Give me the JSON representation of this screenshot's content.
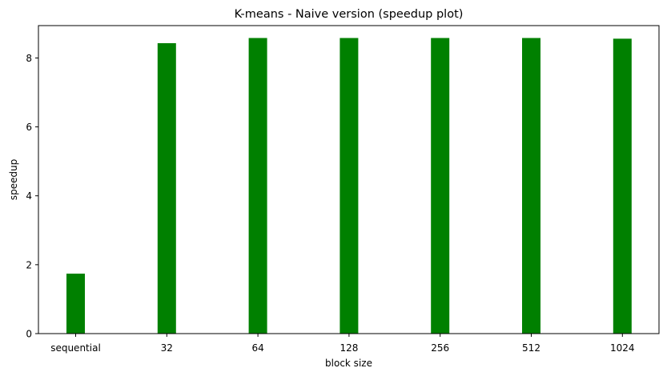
{
  "chart_data": {
    "type": "bar",
    "title": "K-means - Naive version (speedup plot)",
    "xlabel": "block size",
    "ylabel": "speedup",
    "categories": [
      "sequential",
      "32",
      "64",
      "128",
      "256",
      "512",
      "1024"
    ],
    "values": [
      1.74,
      8.43,
      8.58,
      8.58,
      8.58,
      8.58,
      8.56
    ],
    "ylim": [
      0,
      8.94
    ],
    "yticks": [
      0,
      2,
      4,
      6,
      8
    ],
    "ytick_labels": [
      "0",
      "2",
      "4",
      "6",
      "8"
    ],
    "grid": false,
    "legend": "none",
    "bar_color": "#008000"
  }
}
